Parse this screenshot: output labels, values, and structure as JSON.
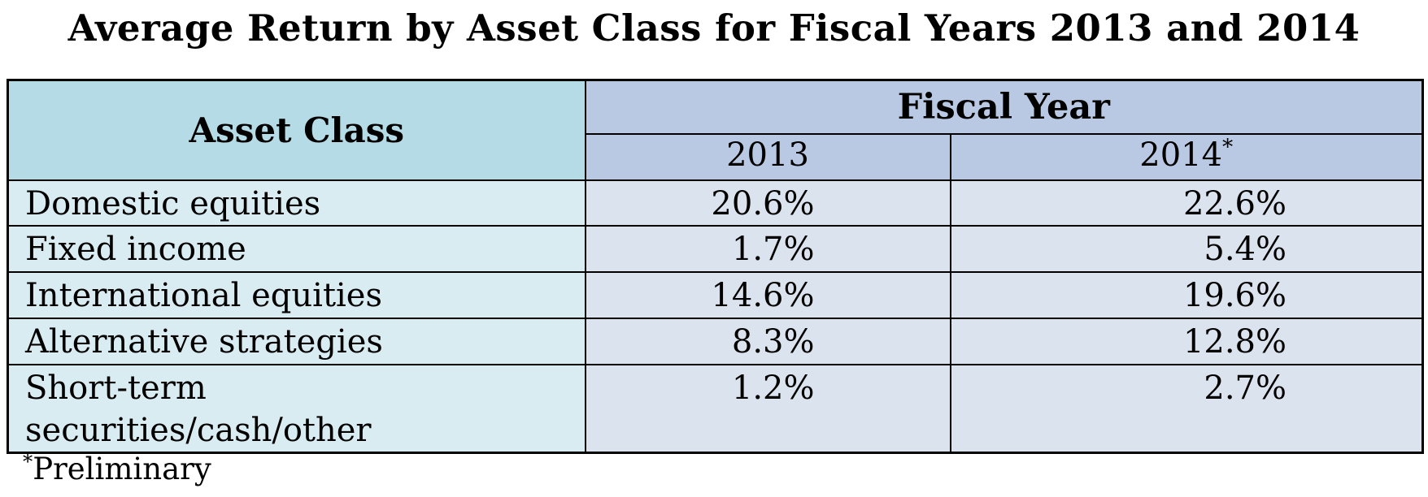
{
  "title": "Average Return by Asset Class for Fiscal Years 2013 and 2014",
  "table": {
    "asset_class_header": "Asset Class",
    "fiscal_year_header": "Fiscal Year",
    "years": [
      {
        "label": "2013",
        "sup": ""
      },
      {
        "label": "2014",
        "sup": "*"
      }
    ],
    "rows": [
      {
        "asset_class": "Domestic equities",
        "fy2013": "20.6%",
        "fy2014": "22.6%"
      },
      {
        "asset_class": "Fixed income",
        "fy2013": "1.7%",
        "fy2014": "5.4%"
      },
      {
        "asset_class": "International equities",
        "fy2013": "14.6%",
        "fy2014": "19.6%"
      },
      {
        "asset_class": "Alternative strategies",
        "fy2013": "8.3%",
        "fy2014": "12.8%"
      },
      {
        "asset_class": "Short-term\nsecurities/cash/other",
        "fy2013": "1.2%",
        "fy2014": "2.7%"
      }
    ]
  },
  "footnote": {
    "marker": "*",
    "text": "Preliminary"
  },
  "colors": {
    "header_asset_bg": "#b5dce6",
    "header_year_bg": "#b9c9e3",
    "cell_asset_bg": "#d9ecf2",
    "cell_value_bg": "#dbe3ee",
    "border_color": "#000000"
  }
}
